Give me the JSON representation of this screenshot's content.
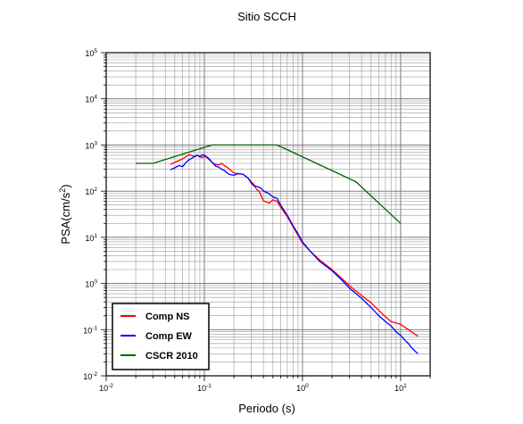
{
  "chart_data": {
    "type": "line",
    "title": "Sitio SCCH",
    "xlabel": "Periodo (s)",
    "ylabel_main": "PSA(cm/s",
    "ylabel_sup": "2",
    "ylabel_end": ")",
    "xscale": "log",
    "yscale": "log",
    "xlim": [
      0.01,
      20
    ],
    "ylim": [
      0.01,
      100000
    ],
    "x_ticks": [
      {
        "base": "10",
        "exp": "-2",
        "value": 0.01
      },
      {
        "base": "10",
        "exp": "-1",
        "value": 0.1
      },
      {
        "base": "10",
        "exp": "0",
        "value": 1
      },
      {
        "base": "10",
        "exp": "1",
        "value": 10
      }
    ],
    "y_ticks": [
      {
        "base": "10",
        "exp": "-2",
        "value": 0.01
      },
      {
        "base": "10",
        "exp": "-1",
        "value": 0.1
      },
      {
        "base": "10",
        "exp": "0",
        "value": 1
      },
      {
        "base": "10",
        "exp": "1",
        "value": 10
      },
      {
        "base": "10",
        "exp": "2",
        "value": 100
      },
      {
        "base": "10",
        "exp": "3",
        "value": 1000
      },
      {
        "base": "10",
        "exp": "4",
        "value": 10000
      },
      {
        "base": "10",
        "exp": "5",
        "value": 100000
      }
    ],
    "grid": true,
    "legend_position": "bottom-left",
    "series": [
      {
        "name": "Comp NS",
        "color": "#ff0000",
        "points": [
          [
            0.045,
            380
          ],
          [
            0.05,
            420
          ],
          [
            0.055,
            460
          ],
          [
            0.06,
            500
          ],
          [
            0.065,
            560
          ],
          [
            0.07,
            620
          ],
          [
            0.075,
            590
          ],
          [
            0.08,
            560
          ],
          [
            0.085,
            600
          ],
          [
            0.09,
            570
          ],
          [
            0.095,
            530
          ],
          [
            0.1,
            580
          ],
          [
            0.11,
            500
          ],
          [
            0.12,
            420
          ],
          [
            0.13,
            380
          ],
          [
            0.14,
            370
          ],
          [
            0.15,
            400
          ],
          [
            0.16,
            360
          ],
          [
            0.17,
            330
          ],
          [
            0.18,
            300
          ],
          [
            0.19,
            270
          ],
          [
            0.2,
            250
          ],
          [
            0.22,
            240
          ],
          [
            0.25,
            230
          ],
          [
            0.28,
            190
          ],
          [
            0.3,
            160
          ],
          [
            0.32,
            140
          ],
          [
            0.34,
            110
          ],
          [
            0.36,
            100
          ],
          [
            0.38,
            80
          ],
          [
            0.4,
            62
          ],
          [
            0.43,
            58
          ],
          [
            0.46,
            55
          ],
          [
            0.5,
            65
          ],
          [
            0.55,
            60
          ],
          [
            0.6,
            45
          ],
          [
            0.7,
            28
          ],
          [
            0.8,
            17
          ],
          [
            0.9,
            11
          ],
          [
            1,
            7.5
          ],
          [
            1.2,
            5
          ],
          [
            1.5,
            3.2
          ],
          [
            2,
            2
          ],
          [
            2.5,
            1.3
          ],
          [
            3,
            0.9
          ],
          [
            4,
            0.55
          ],
          [
            5,
            0.38
          ],
          [
            6,
            0.26
          ],
          [
            7,
            0.19
          ],
          [
            8,
            0.15
          ],
          [
            10,
            0.13
          ],
          [
            12,
            0.1
          ],
          [
            15,
            0.072
          ]
        ]
      },
      {
        "name": "Comp EW",
        "color": "#0000ff",
        "points": [
          [
            0.045,
            290
          ],
          [
            0.05,
            320
          ],
          [
            0.055,
            360
          ],
          [
            0.06,
            340
          ],
          [
            0.065,
            420
          ],
          [
            0.07,
            480
          ],
          [
            0.075,
            520
          ],
          [
            0.08,
            570
          ],
          [
            0.085,
            600
          ],
          [
            0.09,
            550
          ],
          [
            0.095,
            620
          ],
          [
            0.1,
            600
          ],
          [
            0.11,
            520
          ],
          [
            0.12,
            420
          ],
          [
            0.13,
            350
          ],
          [
            0.14,
            330
          ],
          [
            0.15,
            300
          ],
          [
            0.16,
            280
          ],
          [
            0.17,
            250
          ],
          [
            0.18,
            230
          ],
          [
            0.2,
            220
          ],
          [
            0.22,
            240
          ],
          [
            0.25,
            230
          ],
          [
            0.28,
            190
          ],
          [
            0.3,
            150
          ],
          [
            0.32,
            130
          ],
          [
            0.35,
            125
          ],
          [
            0.38,
            115
          ],
          [
            0.4,
            100
          ],
          [
            0.45,
            90
          ],
          [
            0.5,
            75
          ],
          [
            0.55,
            70
          ],
          [
            0.6,
            50
          ],
          [
            0.7,
            30
          ],
          [
            0.8,
            18
          ],
          [
            0.9,
            12
          ],
          [
            1,
            8
          ],
          [
            1.2,
            5
          ],
          [
            1.5,
            3
          ],
          [
            2,
            1.9
          ],
          [
            2.5,
            1.2
          ],
          [
            3,
            0.8
          ],
          [
            4,
            0.48
          ],
          [
            5,
            0.3
          ],
          [
            6,
            0.2
          ],
          [
            7,
            0.15
          ],
          [
            8,
            0.12
          ],
          [
            9,
            0.09
          ],
          [
            10,
            0.075
          ],
          [
            11,
            0.06
          ],
          [
            12,
            0.05
          ],
          [
            13,
            0.04
          ],
          [
            15,
            0.03
          ]
        ]
      },
      {
        "name": "CSCR 2010",
        "color": "#006400",
        "points": [
          [
            0.02,
            400
          ],
          [
            0.03,
            400
          ],
          [
            0.12,
            1000
          ],
          [
            0.55,
            1000
          ],
          [
            3.5,
            160
          ],
          [
            10,
            20
          ]
        ]
      }
    ]
  }
}
